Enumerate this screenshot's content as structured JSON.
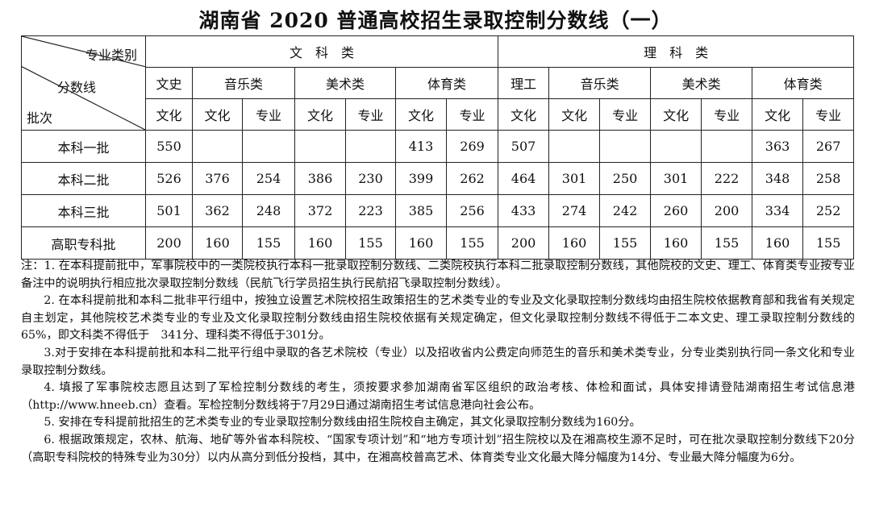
{
  "title": "湖南省 2020 普通高校招生录取控制分数线（一）",
  "header": {
    "corner": {
      "category": "专业类别",
      "score": "分数线",
      "batch": "批次"
    },
    "groups": [
      "文　科　类",
      "理　科　类"
    ],
    "subgroups": [
      "文史",
      "音乐类",
      "美术类",
      "体育类",
      "理工",
      "音乐类",
      "美术类",
      "体育类"
    ],
    "subcols": [
      "文化",
      "文化",
      "专业",
      "文化",
      "专业",
      "文化",
      "专业",
      "文化",
      "文化",
      "专业",
      "文化",
      "专业",
      "文化",
      "专业"
    ]
  },
  "rows": [
    {
      "batch": "本科一批",
      "values": [
        "550",
        "",
        "",
        "",
        "",
        "413",
        "269",
        "507",
        "",
        "",
        "",
        "",
        "363",
        "267"
      ]
    },
    {
      "batch": "本科二批",
      "values": [
        "526",
        "376",
        "254",
        "386",
        "230",
        "399",
        "262",
        "464",
        "301",
        "250",
        "301",
        "222",
        "348",
        "258"
      ]
    },
    {
      "batch": "本科三批",
      "values": [
        "501",
        "362",
        "248",
        "372",
        "223",
        "385",
        "256",
        "433",
        "274",
        "242",
        "260",
        "200",
        "334",
        "252"
      ]
    },
    {
      "batch": "高职专科批",
      "values": [
        "200",
        "160",
        "155",
        "160",
        "155",
        "160",
        "155",
        "200",
        "160",
        "155",
        "160",
        "155",
        "160",
        "155"
      ]
    }
  ],
  "notes": [
    "注：1. 在本科提前批中，军事院校中的一类院校执行本科一批录取控制分数线、二类院校执行本科二批录取控制分数线，其他院校的文史、理工、体育类专业按专业备注中的说明执行相应批次录取控制分数线（民航飞行学员招生执行民航招飞录取控制分数线）。",
    "2. 在本科提前批和本科二批非平行组中，按独立设置艺术院校招生政策招生的艺术类专业的专业及文化录取控制分数线均由招生院校依据教育部和我省有关规定自主划定，其他院校艺术类专业的专业及文化录取控制分数线由招生院校依据有关规定确定，但文化录取控制分数线不得低于二本文史、理工录取控制分数线的65%，即文科类不得低于　341分、理科类不得低于301分。",
    "3.对于安排在本科提前批和本科二批平行组中录取的各艺术院校（专业）以及招收省内公费定向师范生的音乐和美术类专业，分专业类别执行同一条文化和专业录取控制分数线。",
    "4. 填报了军事院校志愿且达到了军检控制分数线的考生，须按要求参加湖南省军区组织的政治考核、体检和面试，具体安排请登陆湖南招生考试信息港（http://www.hneeb.cn）查看。军检控制分数线将于7月29日通过湖南招生考试信息港向社会公布。",
    "5. 安排在专科提前批招生的艺术类专业的专业录取控制分数线由招生院校自主确定，其文化录取控制分数线为160分。",
    "6. 根据政策规定，农林、航海、地矿等外省本科院校、“国家专项计划”和“地方专项计划”招生院校以及在湘高校生源不足时，可在批次录取控制分数线下20分（高职专科院校的特殊专业为30分）以内从高分到低分投档，其中，在湘高校普高艺术、体育类专业文化最大降分幅度为14分、专业最大降分幅度为6分。"
  ]
}
